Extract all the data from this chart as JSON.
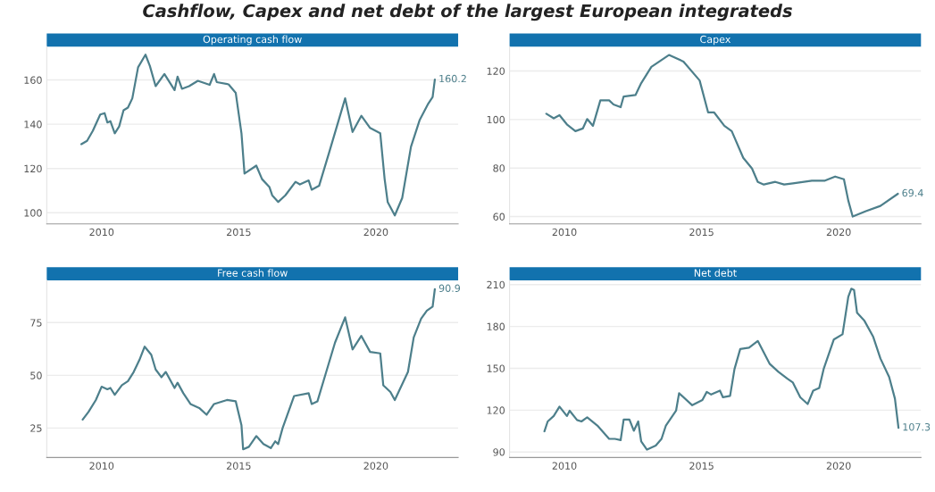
{
  "chart_data": [
    {
      "type": "line",
      "title": "Operating cash flow",
      "annotations": [
        "Cashflow, Capex and net debt of the largest European integrateds",
        {
          "text": "160.2",
          "x": 2022.15,
          "y": 160.2
        }
      ],
      "xlim": [
        2008,
        2023
      ],
      "xticks": [
        2010,
        2015,
        2020
      ],
      "ylim": [
        95,
        175
      ],
      "yticks": [
        100,
        120,
        140,
        160
      ],
      "grid": "y",
      "x": [
        2009.26,
        2009.47,
        2009.68,
        2009.95,
        2010.11,
        2010.21,
        2010.32,
        2010.48,
        2010.64,
        2010.8,
        2010.96,
        2011.12,
        2011.33,
        2011.6,
        2011.76,
        2011.97,
        2012.29,
        2012.66,
        2012.77,
        2012.93,
        2013.19,
        2013.51,
        2013.94,
        2014.1,
        2014.2,
        2014.63,
        2014.89,
        2015.1,
        2015.21,
        2015.64,
        2015.85,
        2016.12,
        2016.22,
        2016.44,
        2016.7,
        2017.07,
        2017.23,
        2017.55,
        2017.66,
        2017.93,
        2018.3,
        2018.56,
        2018.88,
        2019.15,
        2019.47,
        2019.79,
        2020.16,
        2020.32,
        2020.43,
        2020.69,
        2020.96,
        2021.28,
        2021.6,
        2021.91,
        2022.07,
        2022.15
      ],
      "series": [
        {
          "color": "#4d7f8b",
          "values": [
            131,
            132.5,
            137,
            144.4,
            145,
            140.8,
            141.4,
            135.9,
            139,
            146.3,
            147.5,
            151.7,
            165.7,
            171.4,
            166.3,
            157.2,
            162.7,
            155.4,
            161.5,
            156,
            157.2,
            159.6,
            157.8,
            162.7,
            159,
            158,
            154.2,
            135.9,
            117.7,
            121.3,
            115.2,
            111.6,
            107.9,
            104.9,
            107.9,
            114,
            112.8,
            114.6,
            110.4,
            112.2,
            127.4,
            138.3,
            151.7,
            136.5,
            143.8,
            138.3,
            135.9,
            115.2,
            104.9,
            98.8,
            106.7,
            129.8,
            142,
            149.3,
            152.3,
            160.2
          ]
        }
      ]
    },
    {
      "type": "line",
      "title": "Capex",
      "annotations": [
        {
          "text": "69.4",
          "x": 2022.16,
          "y": 69.4
        }
      ],
      "xlim": [
        2008,
        2023
      ],
      "xticks": [
        2010,
        2015,
        2020
      ],
      "ylim": [
        57,
        130
      ],
      "yticks": [
        60,
        80,
        100,
        120
      ],
      "grid": "y",
      "x": [
        2009.34,
        2009.61,
        2009.82,
        2010.09,
        2010.4,
        2010.67,
        2010.83,
        2011.04,
        2011.31,
        2011.63,
        2011.79,
        2012.05,
        2012.16,
        2012.59,
        2012.8,
        2013.17,
        2013.81,
        2014.34,
        2014.93,
        2015.24,
        2015.46,
        2015.83,
        2016.1,
        2016.52,
        2016.84,
        2017.05,
        2017.27,
        2017.69,
        2018.01,
        2018.33,
        2019.02,
        2019.5,
        2019.87,
        2020.19,
        2020.35,
        2020.51,
        2020.99,
        2021.52,
        2022.16
      ],
      "series": [
        {
          "color": "#4d7f8b",
          "values": [
            102.4,
            100.5,
            101.8,
            98,
            95.2,
            96.3,
            100.2,
            97.4,
            107.9,
            107.9,
            106.2,
            105.1,
            109.5,
            110.1,
            115,
            121.7,
            126.6,
            123.9,
            116.1,
            102.9,
            102.9,
            97.4,
            95.2,
            84.2,
            79.8,
            74.3,
            73.2,
            74.3,
            73.2,
            73.7,
            74.8,
            74.8,
            76.5,
            75.4,
            66.6,
            60,
            62.2,
            64.4,
            69.4
          ]
        }
      ]
    },
    {
      "type": "line",
      "title": "Free cash flow",
      "annotations": [
        {
          "text": "90.9",
          "x": 2022.15,
          "y": 90.9
        }
      ],
      "xlim": [
        2008,
        2023
      ],
      "xticks": [
        2010,
        2015,
        2020
      ],
      "ylim": [
        11,
        95
      ],
      "yticks": [
        25,
        50,
        75
      ],
      "grid": "y",
      "x": [
        2009.31,
        2009.52,
        2009.79,
        2010,
        2010.21,
        2010.32,
        2010.48,
        2010.74,
        2010.96,
        2011.17,
        2011.38,
        2011.57,
        2011.81,
        2011.97,
        2012.18,
        2012.34,
        2012.66,
        2012.77,
        2012.98,
        2013.24,
        2013.56,
        2013.83,
        2014.1,
        2014.57,
        2014.89,
        2015.1,
        2015.16,
        2015.37,
        2015.64,
        2015.9,
        2016.17,
        2016.33,
        2016.44,
        2016.6,
        2017.02,
        2017.55,
        2017.66,
        2017.87,
        2018.19,
        2018.51,
        2018.88,
        2019.15,
        2019.47,
        2019.79,
        2020.16,
        2020.27,
        2020.53,
        2020.69,
        2021.17,
        2021.38,
        2021.65,
        2021.86,
        2022.07,
        2022.15
      ],
      "series": [
        {
          "color": "#4d7f8b",
          "values": [
            29,
            32.6,
            38.3,
            44.6,
            43.4,
            44,
            40.8,
            45.3,
            47.2,
            51.6,
            57.3,
            63.6,
            59.8,
            52.8,
            49.1,
            51.6,
            44,
            46.5,
            41.5,
            36.4,
            34.5,
            31.3,
            36.4,
            38.3,
            37.7,
            26.3,
            14.9,
            16.1,
            21.2,
            17.4,
            15.5,
            18.7,
            17.4,
            25,
            40.2,
            41.5,
            36.4,
            37.7,
            51.6,
            65.5,
            77.5,
            62.3,
            68.7,
            61.1,
            60.4,
            45.3,
            42.1,
            38.3,
            51.6,
            68,
            76.9,
            80.7,
            82.6,
            90.9
          ]
        }
      ]
    },
    {
      "type": "line",
      "title": "Net debt",
      "annotations": [
        {
          "text": "107.3",
          "x": 2022.18,
          "y": 107.3
        }
      ],
      "xlim": [
        2008,
        2023
      ],
      "xticks": [
        2010,
        2015,
        2020
      ],
      "ylim": [
        86,
        213
      ],
      "yticks": [
        90,
        120,
        150,
        180,
        210
      ],
      "grid": "y",
      "x": [
        2009.27,
        2009.39,
        2009.61,
        2009.82,
        2010.09,
        2010.19,
        2010.46,
        2010.62,
        2010.83,
        2011.2,
        2011.63,
        2011.84,
        2012.05,
        2012.16,
        2012.37,
        2012.53,
        2012.69,
        2012.8,
        2013.01,
        2013.33,
        2013.54,
        2013.7,
        2014.07,
        2014.18,
        2014.66,
        2015.03,
        2015.19,
        2015.35,
        2015.67,
        2015.78,
        2016.04,
        2016.2,
        2016.41,
        2016.73,
        2017.05,
        2017.48,
        2017.8,
        2018.12,
        2018.33,
        2018.6,
        2018.87,
        2019.07,
        2019.29,
        2019.45,
        2019.82,
        2020.14,
        2020.35,
        2020.46,
        2020.56,
        2020.67,
        2020.94,
        2021.26,
        2021.52,
        2021.84,
        2022.05,
        2022.18
      ],
      "series": [
        {
          "color": "#4d7f8b",
          "values": [
            104.8,
            111.9,
            115.8,
            122.5,
            115.8,
            119.6,
            112.9,
            111.9,
            114.8,
            109,
            99.4,
            99.4,
            98.5,
            113.3,
            113.3,
            105.2,
            111.9,
            97.5,
            91.7,
            94.6,
            99.4,
            109,
            119.6,
            132.1,
            123.5,
            127.3,
            133.1,
            131.2,
            134,
            129.2,
            130.2,
            149.4,
            163.8,
            164.8,
            169.6,
            153.3,
            147.5,
            142.7,
            139.8,
            129.2,
            124.4,
            134,
            135.9,
            149.4,
            170.6,
            174.4,
            201.3,
            207.1,
            206.2,
            189.8,
            184,
            172.5,
            157.1,
            143.7,
            128.3,
            107.3
          ]
        }
      ]
    }
  ]
}
